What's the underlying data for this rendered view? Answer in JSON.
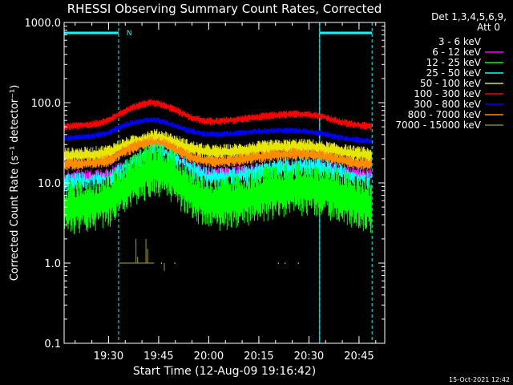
{
  "chart_data": {
    "type": "line",
    "title": "RHESSI Observing Summary Count Rates, Corrected",
    "xlabel": "Start Time (12-Aug-09 19:16:42)",
    "ylabel": "Corrected Count Rate (s⁻¹ detector⁻¹)",
    "yscale": "log",
    "ylim": [
      0.1,
      1000
    ],
    "xlim_minutes_after_start": [
      0,
      96
    ],
    "x_ticks": [
      {
        "label": "19:30",
        "minute": 13.3
      },
      {
        "label": "19:45",
        "minute": 28.3
      },
      {
        "label": "20:00",
        "minute": 43.3
      },
      {
        "label": "20:15",
        "minute": 58.3
      },
      {
        "label": "20:30",
        "minute": 73.3
      },
      {
        "label": "20:45",
        "minute": 88.3
      }
    ],
    "y_ticks": [
      {
        "label": "0.1",
        "value": 0.1
      },
      {
        "label": "1.0",
        "value": 1
      },
      {
        "label": "10.0",
        "value": 10
      },
      {
        "label": "100.0",
        "value": 100
      },
      {
        "label": "1000.0",
        "value": 1000
      }
    ],
    "legend_header": [
      "Det 1,3,4,5,6,9,",
      "Att 0"
    ],
    "legend_position": "top-right",
    "series": [
      {
        "name": "3 - 6 keV",
        "color": "#000000",
        "noise": 0.25,
        "x": [
          0,
          8,
          13.3,
          16,
          20,
          24,
          26,
          28,
          30,
          34,
          38,
          42,
          46,
          50,
          54,
          58,
          62,
          66,
          70,
          74,
          78,
          82,
          86,
          92
        ],
        "y": [
          6,
          6.2,
          6.8,
          8,
          10,
          12.5,
          13.5,
          14,
          13.5,
          11,
          8.5,
          7,
          6.5,
          6.8,
          7.2,
          7.8,
          8.2,
          8.6,
          8.8,
          8.8,
          8.5,
          7.8,
          7.2,
          6.5
        ]
      },
      {
        "name": "6 - 12 keV",
        "color": "#ff00ff",
        "noise": 0.12,
        "x": [
          0,
          8,
          13.3,
          16,
          20,
          24,
          26,
          28,
          30,
          34,
          38,
          42,
          46,
          50,
          54,
          58,
          62,
          66,
          70,
          74,
          78,
          82,
          86,
          92
        ],
        "y": [
          11,
          11.3,
          12,
          13.5,
          16,
          18.5,
          19.5,
          20,
          19.5,
          17,
          14,
          12.5,
          12,
          12.3,
          12.8,
          13.5,
          14,
          14.5,
          14.8,
          14.8,
          14.3,
          13.3,
          12.3,
          11.3
        ]
      },
      {
        "name": "12 - 25 keV",
        "color": "#00ff00",
        "noise": 0.35,
        "x": [
          0,
          8,
          13.3,
          16,
          20,
          24,
          26,
          28,
          30,
          34,
          38,
          42,
          46,
          50,
          54,
          58,
          62,
          66,
          70,
          74,
          78,
          82,
          86,
          92
        ],
        "y": [
          5,
          5.3,
          6,
          7.5,
          10,
          13,
          14.5,
          15,
          14,
          10.5,
          7.5,
          6,
          5.5,
          5.8,
          6.3,
          7,
          7.6,
          8.2,
          8.5,
          8.5,
          8,
          7,
          6,
          5
        ]
      },
      {
        "name": "25 - 50 keV",
        "color": "#00ffff",
        "noise": 0.15,
        "x": [
          0,
          8,
          13.3,
          16,
          20,
          24,
          26,
          28,
          30,
          34,
          38,
          42,
          46,
          50,
          54,
          58,
          62,
          66,
          70,
          74,
          78,
          82,
          86,
          92
        ],
        "y": [
          9.5,
          9.8,
          10.5,
          12,
          15,
          19.5,
          21.5,
          22,
          21,
          17,
          13.5,
          11.5,
          11,
          11.3,
          12,
          13,
          13.8,
          14.5,
          14.8,
          14.8,
          14,
          12.5,
          11,
          10
        ]
      },
      {
        "name": "50 - 100 keV",
        "color": "#e6e600",
        "noise": 0.1,
        "x": [
          0,
          8,
          13.3,
          16,
          20,
          24,
          26,
          28,
          30,
          34,
          38,
          42,
          46,
          50,
          54,
          58,
          62,
          66,
          70,
          74,
          78,
          82,
          86,
          92
        ],
        "y": [
          22,
          22.5,
          24,
          27,
          31,
          35,
          37,
          37.5,
          36,
          31,
          27,
          24.5,
          24,
          24.5,
          25.5,
          26.5,
          27.5,
          28,
          28.5,
          28,
          26.5,
          25,
          23.5,
          22
        ]
      },
      {
        "name": "100 - 300 keV",
        "color": "#ff0000",
        "noise": 0.05,
        "x": [
          0,
          8,
          13.3,
          16,
          20,
          24,
          26,
          28,
          30,
          34,
          38,
          42,
          46,
          50,
          54,
          58,
          62,
          66,
          70,
          74,
          78,
          82,
          86,
          92
        ],
        "y": [
          50,
          53,
          60,
          70,
          85,
          97,
          100,
          98,
          92,
          78,
          65,
          59,
          58,
          60,
          63,
          66,
          69,
          71,
          72,
          71,
          66,
          58,
          54,
          50
        ]
      },
      {
        "name": "300 - 800 keV",
        "color": "#0000ff",
        "noise": 0.04,
        "x": [
          0,
          8,
          13.3,
          16,
          20,
          24,
          26,
          28,
          30,
          34,
          38,
          42,
          46,
          50,
          54,
          58,
          62,
          66,
          70,
          74,
          78,
          82,
          86,
          92
        ],
        "y": [
          36,
          38,
          42,
          48,
          55,
          60,
          61,
          60,
          57,
          50,
          44,
          40.5,
          40,
          41,
          42.5,
          43.5,
          44.5,
          45,
          44.5,
          43,
          40.5,
          37,
          35,
          33
        ]
      },
      {
        "name": "800 - 7000 keV",
        "color": "#ff8c00",
        "noise": 0.08,
        "x": [
          0,
          8,
          13.3,
          16,
          20,
          24,
          26,
          28,
          30,
          34,
          38,
          42,
          46,
          50,
          54,
          58,
          62,
          66,
          70,
          74,
          78,
          82,
          86,
          92
        ],
        "y": [
          17,
          17.5,
          19,
          22,
          27,
          31,
          32,
          32,
          30,
          25,
          21,
          19,
          18.5,
          19,
          20,
          21,
          22,
          22.5,
          23,
          22.5,
          21,
          19.5,
          18,
          17
        ]
      },
      {
        "name": "7000 - 15000 keV",
        "color": "#8b8b00",
        "noise": 0,
        "x": [],
        "y": []
      }
    ],
    "shaded_intervals": [
      {
        "x0": 0,
        "x1": 16.3
      },
      {
        "x0": 76.5,
        "x1": 92.2
      }
    ],
    "flag_label": "N",
    "footer_timestamp": "15-Oct-2021 12:42"
  }
}
